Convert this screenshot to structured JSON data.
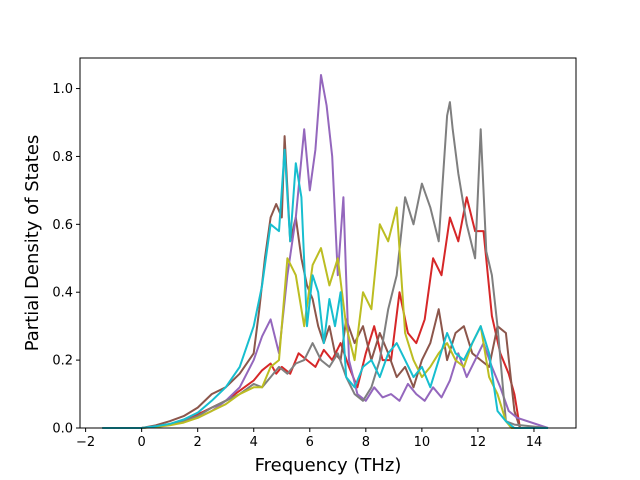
{
  "chart_data": {
    "type": "line",
    "xlabel": "Frequency (THz)",
    "ylabel": "Partial Density of States",
    "xlim": [
      -2.2,
      15.5
    ],
    "ylim": [
      0.0,
      1.09
    ],
    "xticks": [
      "−2",
      "0",
      "2",
      "4",
      "6",
      "8",
      "10",
      "12",
      "14"
    ],
    "xtick_values": [
      -2,
      0,
      2,
      4,
      6,
      8,
      10,
      12,
      14
    ],
    "yticks": [
      "0.0",
      "0.2",
      "0.4",
      "0.6",
      "0.8",
      "1.0"
    ],
    "ytick_values": [
      0.0,
      0.2,
      0.4,
      0.6,
      0.8,
      1.0
    ],
    "grid": false,
    "legend": "none",
    "series": [
      {
        "color": "#d62728",
        "x": [
          -1.4,
          0,
          0.5,
          1,
          1.5,
          2,
          2.5,
          3,
          3.5,
          4,
          4.3,
          4.6,
          4.8,
          5,
          5.3,
          5.6,
          5.9,
          6.2,
          6.5,
          6.8,
          7.1,
          7.4,
          7.7,
          8.0,
          8.3,
          8.6,
          8.9,
          9.2,
          9.5,
          9.8,
          10.1,
          10.4,
          10.7,
          11.0,
          11.3,
          11.6,
          11.9,
          12.2,
          12.5,
          12.8,
          13.1,
          13.3,
          13.5,
          14.5
        ],
        "y": [
          0,
          0,
          0.005,
          0.01,
          0.02,
          0.04,
          0.06,
          0.08,
          0.11,
          0.14,
          0.17,
          0.19,
          0.16,
          0.18,
          0.16,
          0.22,
          0.2,
          0.18,
          0.23,
          0.2,
          0.25,
          0.18,
          0.12,
          0.22,
          0.3,
          0.2,
          0.2,
          0.4,
          0.28,
          0.25,
          0.32,
          0.5,
          0.45,
          0.62,
          0.55,
          0.68,
          0.58,
          0.58,
          0.33,
          0.22,
          0.16,
          0.1,
          0.0,
          0
        ]
      },
      {
        "color": "#8c564b",
        "x": [
          -1.4,
          0,
          0.5,
          1,
          1.5,
          2,
          2.5,
          3,
          3.5,
          4,
          4.2,
          4.4,
          4.6,
          4.8,
          5.0,
          5.1,
          5.3,
          5.5,
          5.7,
          5.9,
          6.1,
          6.3,
          6.5,
          6.7,
          6.9,
          7.1,
          7.3,
          7.6,
          7.9,
          8.2,
          8.5,
          8.8,
          9.1,
          9.4,
          9.7,
          10.0,
          10.3,
          10.6,
          10.9,
          11.2,
          11.5,
          11.8,
          12.1,
          12.4,
          12.7,
          13.0,
          13.3,
          13.5,
          14.5
        ],
        "y": [
          0,
          0,
          0.008,
          0.02,
          0.035,
          0.06,
          0.1,
          0.12,
          0.16,
          0.22,
          0.35,
          0.5,
          0.62,
          0.66,
          0.62,
          0.86,
          0.55,
          0.62,
          0.5,
          0.42,
          0.38,
          0.3,
          0.25,
          0.3,
          0.22,
          0.2,
          0.32,
          0.25,
          0.3,
          0.2,
          0.28,
          0.22,
          0.15,
          0.18,
          0.12,
          0.2,
          0.25,
          0.35,
          0.2,
          0.28,
          0.3,
          0.22,
          0.2,
          0.18,
          0.3,
          0.28,
          0.05,
          0.0,
          0
        ]
      },
      {
        "color": "#9467bd",
        "x": [
          -1.4,
          0,
          0.5,
          1,
          1.5,
          2,
          2.5,
          3,
          3.5,
          4,
          4.3,
          4.6,
          4.9,
          5.2,
          5.5,
          5.8,
          6.0,
          6.2,
          6.4,
          6.6,
          6.8,
          7.0,
          7.2,
          7.4,
          7.7,
          8.0,
          8.3,
          8.6,
          8.9,
          9.2,
          9.5,
          9.8,
          10.1,
          10.4,
          10.7,
          11.0,
          11.3,
          11.6,
          11.9,
          12.2,
          12.5,
          12.8,
          13.1,
          13.4,
          14.5
        ],
        "y": [
          0,
          0,
          0.004,
          0.01,
          0.02,
          0.03,
          0.05,
          0.08,
          0.12,
          0.2,
          0.27,
          0.32,
          0.22,
          0.45,
          0.62,
          0.88,
          0.7,
          0.82,
          1.04,
          0.95,
          0.8,
          0.45,
          0.68,
          0.2,
          0.1,
          0.08,
          0.12,
          0.09,
          0.1,
          0.08,
          0.13,
          0.1,
          0.08,
          0.12,
          0.09,
          0.14,
          0.22,
          0.15,
          0.2,
          0.25,
          0.18,
          0.12,
          0.05,
          0.03,
          0
        ]
      },
      {
        "color": "#7f7f7f",
        "x": [
          -1.4,
          0,
          0.5,
          1,
          1.5,
          2,
          2.5,
          3,
          3.5,
          4,
          4.3,
          4.6,
          4.9,
          5.2,
          5.5,
          5.8,
          6.1,
          6.4,
          6.7,
          7.0,
          7.3,
          7.6,
          7.9,
          8.2,
          8.5,
          8.8,
          9.1,
          9.4,
          9.7,
          10.0,
          10.3,
          10.6,
          10.9,
          11.0,
          11.1,
          11.3,
          11.6,
          11.9,
          12.1,
          12.3,
          12.5,
          12.7,
          13.0,
          13.3,
          14.5
        ],
        "y": [
          0,
          0,
          0.004,
          0.01,
          0.02,
          0.035,
          0.06,
          0.08,
          0.1,
          0.13,
          0.12,
          0.15,
          0.18,
          0.16,
          0.19,
          0.2,
          0.25,
          0.2,
          0.18,
          0.22,
          0.15,
          0.1,
          0.08,
          0.12,
          0.2,
          0.35,
          0.45,
          0.68,
          0.6,
          0.72,
          0.65,
          0.55,
          0.92,
          0.96,
          0.88,
          0.75,
          0.6,
          0.5,
          0.88,
          0.52,
          0.45,
          0.3,
          0.02,
          0.01,
          0
        ]
      },
      {
        "color": "#bcbd22",
        "x": [
          -1.4,
          0,
          0.5,
          1,
          1.5,
          2,
          2.5,
          3,
          3.5,
          4,
          4.3,
          4.6,
          4.9,
          5.2,
          5.5,
          5.8,
          6.1,
          6.4,
          6.7,
          7.0,
          7.3,
          7.6,
          7.9,
          8.2,
          8.5,
          8.8,
          9.1,
          9.4,
          9.7,
          10.0,
          10.3,
          10.6,
          10.9,
          11.2,
          11.5,
          11.8,
          12.1,
          12.4,
          12.7,
          13.0,
          13.2,
          14.5
        ],
        "y": [
          0,
          0,
          0.003,
          0.008,
          0.016,
          0.03,
          0.05,
          0.07,
          0.1,
          0.12,
          0.12,
          0.18,
          0.2,
          0.5,
          0.45,
          0.3,
          0.48,
          0.53,
          0.42,
          0.5,
          0.3,
          0.2,
          0.4,
          0.35,
          0.6,
          0.55,
          0.65,
          0.28,
          0.2,
          0.15,
          0.18,
          0.22,
          0.25,
          0.2,
          0.18,
          0.25,
          0.3,
          0.15,
          0.1,
          0.02,
          0.0,
          0
        ]
      },
      {
        "color": "#17becf",
        "x": [
          -1.4,
          0,
          0.5,
          1,
          1.5,
          2,
          2.5,
          3,
          3.5,
          4,
          4.3,
          4.6,
          4.9,
          5.1,
          5.3,
          5.5,
          5.7,
          5.9,
          6.1,
          6.3,
          6.5,
          6.7,
          6.9,
          7.1,
          7.3,
          7.6,
          7.9,
          8.2,
          8.5,
          8.8,
          9.1,
          9.4,
          9.7,
          10.0,
          10.3,
          10.6,
          10.9,
          11.2,
          11.5,
          11.8,
          12.1,
          12.4,
          12.7,
          13.0,
          13.3,
          14.5
        ],
        "y": [
          0,
          0,
          0.005,
          0.012,
          0.025,
          0.045,
          0.08,
          0.12,
          0.18,
          0.3,
          0.42,
          0.6,
          0.58,
          0.82,
          0.55,
          0.78,
          0.68,
          0.3,
          0.45,
          0.4,
          0.25,
          0.38,
          0.3,
          0.4,
          0.15,
          0.12,
          0.18,
          0.2,
          0.15,
          0.22,
          0.25,
          0.2,
          0.15,
          0.18,
          0.12,
          0.2,
          0.28,
          0.22,
          0.2,
          0.25,
          0.3,
          0.22,
          0.05,
          0.02,
          0.0,
          0
        ]
      }
    ]
  }
}
